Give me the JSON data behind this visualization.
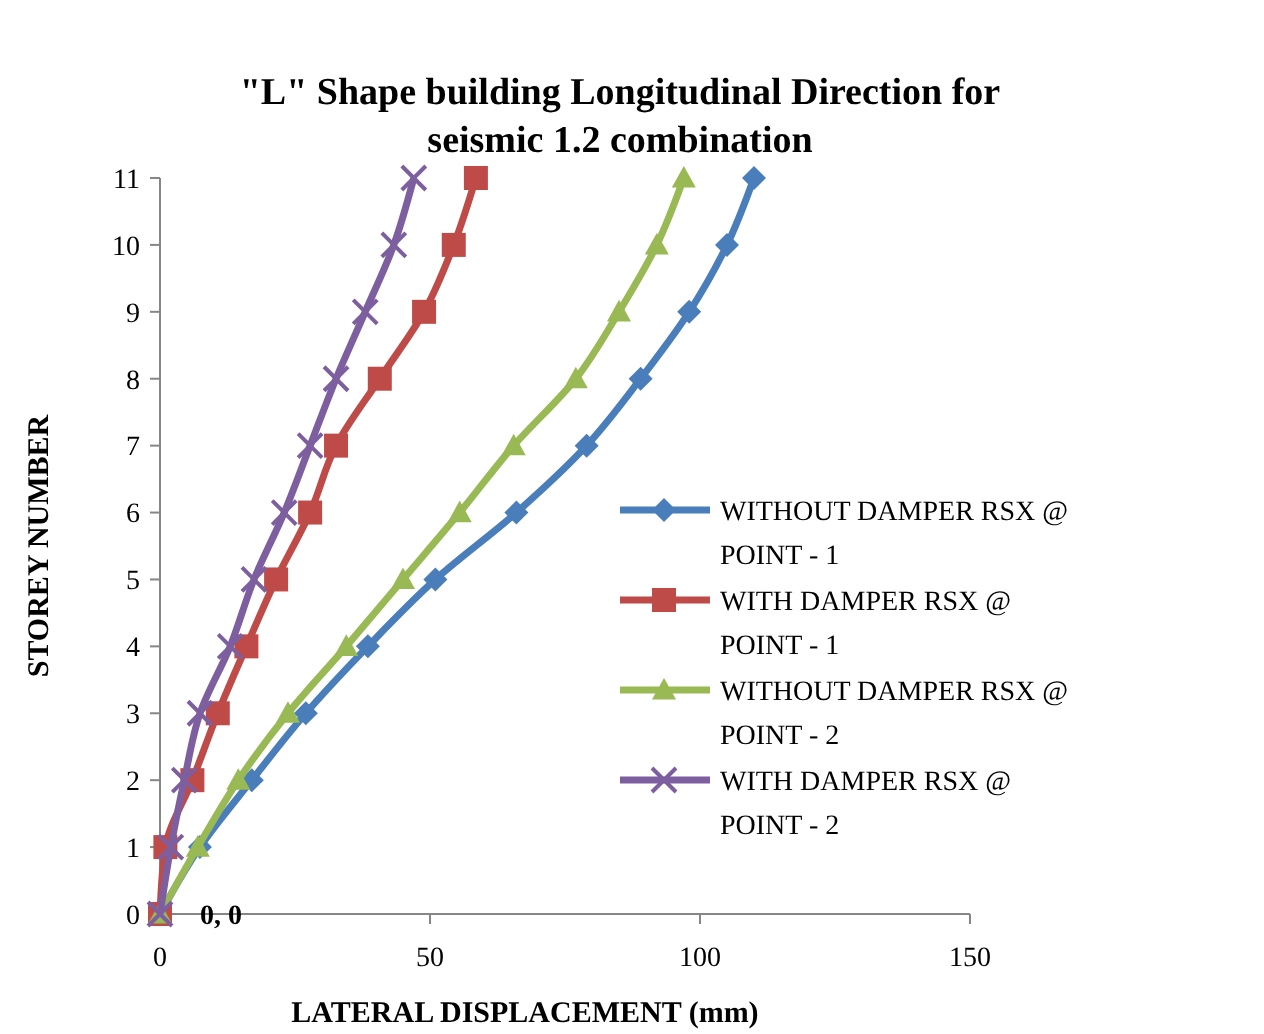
{
  "chart_data": {
    "type": "line",
    "title": "\"L\" Shape building Longitudinal Direction for seismic 1.2 combination",
    "xlabel": "LATERAL DISPLACEMENT (mm)",
    "ylabel": "STOREY NUMBER",
    "xlim": [
      0,
      150
    ],
    "xticks": [
      0,
      50,
      100,
      150
    ],
    "ylim": [
      0,
      11
    ],
    "yticks": [
      0,
      1,
      2,
      3,
      4,
      5,
      6,
      7,
      8,
      9,
      10,
      11
    ],
    "grid": false,
    "legend": "right",
    "line_style": "solid",
    "annotations": [
      {
        "text": "0, 0",
        "x": 0,
        "y": 0
      }
    ],
    "series": [
      {
        "name": "WITHOUT DAMPER RSX @ POINT - 1",
        "color": "#4a7ebb",
        "marker": "diamond",
        "x": [
          0,
          7.4,
          17,
          27,
          38.5,
          51,
          66,
          79,
          89,
          98,
          105,
          110
        ],
        "values": [
          0,
          1,
          2,
          3,
          4,
          5,
          6,
          7,
          8,
          9,
          10,
          11
        ]
      },
      {
        "name": "WITH DAMPER RSX @ POINT - 1",
        "color": "#be4b48",
        "marker": "square",
        "x": [
          0,
          1,
          6,
          10.7,
          16,
          21.5,
          27.8,
          32.6,
          40.7,
          48.9,
          54.4,
          58.5
        ],
        "values": [
          0,
          1,
          2,
          3,
          4,
          5,
          6,
          7,
          8,
          9,
          10,
          11
        ]
      },
      {
        "name": "WITHOUT DAMPER RSX @ POINT - 2",
        "color": "#98b954",
        "marker": "triangle",
        "x": [
          0,
          7,
          14.5,
          23.7,
          34.5,
          45,
          55.5,
          65.5,
          77,
          85,
          92,
          97
        ],
        "values": [
          0,
          1,
          2,
          3,
          4,
          5,
          6,
          7,
          8,
          9,
          10,
          11
        ]
      },
      {
        "name": "WITH DAMPER RSX @ POINT - 2",
        "color": "#7d5fa0",
        "marker": "cross",
        "x": [
          0,
          2,
          4.5,
          7.4,
          13,
          17.4,
          23,
          27.8,
          32.6,
          38,
          43.3,
          47
        ],
        "values": [
          0,
          1,
          2,
          3,
          4,
          5,
          6,
          7,
          8,
          9,
          10,
          11
        ]
      }
    ]
  }
}
